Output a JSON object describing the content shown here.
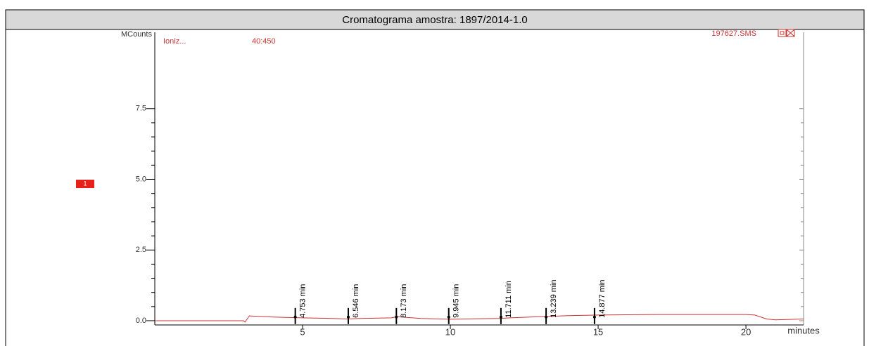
{
  "chart_data": {
    "type": "line",
    "title": "Cromatograma amostra: 1897/2014-1.0",
    "ylabel": "MCounts",
    "xlabel": "minutes",
    "annotations": [
      "Ioniz...",
      "40:450",
      "197627.SMS"
    ],
    "badge": "1",
    "xlim": [
      0,
      21.95
    ],
    "ylim": [
      -0.15,
      10.2
    ],
    "xticks": [
      5,
      10,
      15,
      20
    ],
    "yticks": [
      {
        "value": 0,
        "label": "0.0"
      },
      2.5,
      {
        "value": 5,
        "label": "5.0"
      },
      7.5
    ],
    "series": [
      {
        "name": "TIC",
        "color": "#cc3333",
        "x": [
          0,
          3.0,
          3.05,
          3.2,
          4,
          5,
          6,
          6.5,
          7,
          8,
          8.2,
          9,
          10,
          11,
          11.7,
          12,
          13,
          14,
          15,
          16,
          17,
          18,
          19,
          20,
          20.3,
          20.7,
          21,
          21.95
        ],
        "values": [
          0,
          0,
          -0.05,
          0.17,
          0.13,
          0.1,
          0.08,
          0.06,
          0.08,
          0.1,
          0.14,
          0.08,
          0.05,
          0.07,
          0.08,
          0.1,
          0.14,
          0.18,
          0.2,
          0.21,
          0.22,
          0.22,
          0.22,
          0.22,
          0.2,
          0.06,
          0.03,
          0.06
        ]
      }
    ],
    "peaks": [
      {
        "x": 4.753,
        "label": "4.753 min"
      },
      {
        "x": 6.546,
        "label": "6.546 min"
      },
      {
        "x": 8.173,
        "label": "8.173 min"
      },
      {
        "x": 9.945,
        "label": "9.945 min"
      },
      {
        "x": 11.711,
        "label": "11.711 min"
      },
      {
        "x": 13.239,
        "label": "13.239 min"
      },
      {
        "x": 14.877,
        "label": "14.877 min"
      }
    ]
  }
}
